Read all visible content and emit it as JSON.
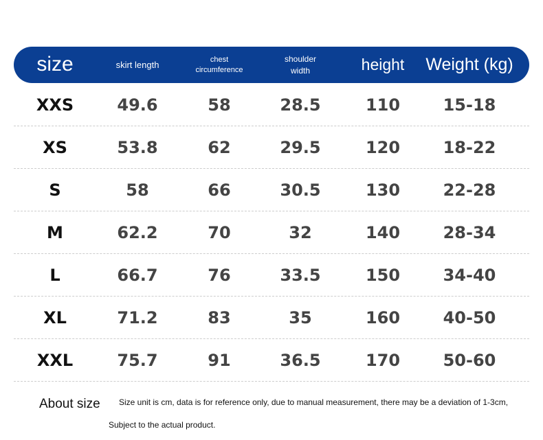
{
  "table": {
    "header": [
      "size",
      "skirt length",
      "chest circumference",
      "shoulder width",
      "height",
      "Weight (kg)"
    ],
    "rows": [
      [
        "XXS",
        "49.6",
        "58",
        "28.5",
        "110",
        "15-18"
      ],
      [
        "XS",
        "53.8",
        "62",
        "29.5",
        "120",
        "18-22"
      ],
      [
        "S",
        "58",
        "66",
        "30.5",
        "130",
        "22-28"
      ],
      [
        "M",
        "62.2",
        "70",
        "32",
        "140",
        "28-34"
      ],
      [
        "L",
        "66.7",
        "76",
        "33.5",
        "150",
        "34-40"
      ],
      [
        "XL",
        "71.2",
        "83",
        "35",
        "160",
        "40-50"
      ],
      [
        "XXL",
        "75.7",
        "91",
        "36.5",
        "170",
        "50-60"
      ]
    ]
  },
  "footer": {
    "title": "About size",
    "note_line1": "Size unit is cm, data is for reference only, due to manual measurement, there may be a deviation of 1-3cm,",
    "note_line2": "Subject to the actual product."
  }
}
